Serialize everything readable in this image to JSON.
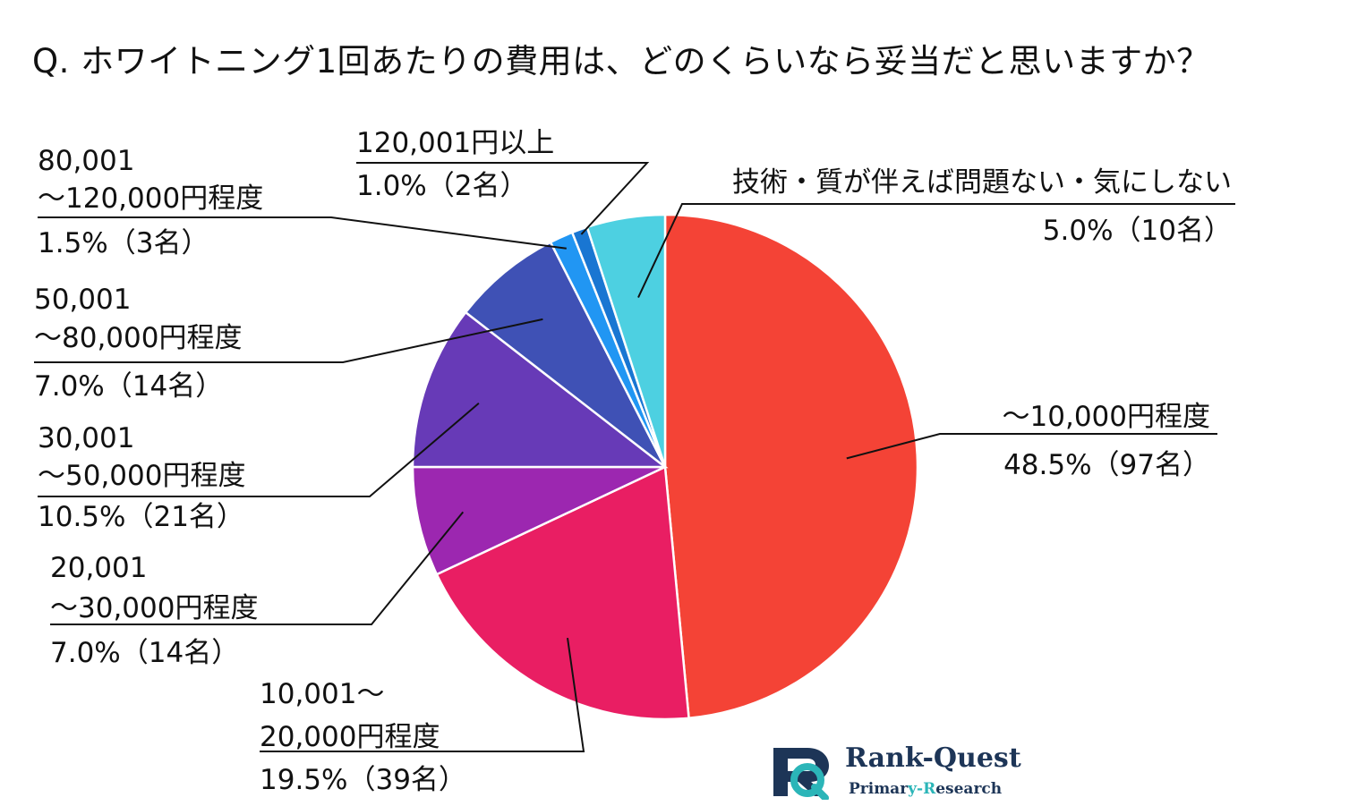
{
  "title": "Q. ホワイトニング1回あたりの費用は、どのくらいなら妥当だと思いますか？",
  "chart_data": {
    "type": "pie",
    "start": "12 o'clock",
    "direction": "clockwise",
    "slices": [
      {
        "label_lines": [
          "～10,000円程度"
        ],
        "value_text": "48.5%（97名）",
        "percent": 48.5,
        "count": 97,
        "color": "#f44336"
      },
      {
        "label_lines": [
          "10,001～",
          "20,000円程度"
        ],
        "value_text": "19.5%（39名）",
        "percent": 19.5,
        "count": 39,
        "color": "#e91e63"
      },
      {
        "label_lines": [
          "20,001",
          "～30,000円程度"
        ],
        "value_text": "7.0%（14名）",
        "percent": 7.0,
        "count": 14,
        "color": "#9c27b0"
      },
      {
        "label_lines": [
          "30,001",
          "～50,000円程度"
        ],
        "value_text": "10.5%（21名）",
        "percent": 10.5,
        "count": 21,
        "color": "#673ab7"
      },
      {
        "label_lines": [
          "50,001",
          "～80,000円程度"
        ],
        "value_text": "7.0%（14名）",
        "percent": 7.0,
        "count": 14,
        "color": "#3f51b5"
      },
      {
        "label_lines": [
          "80,001",
          "～120,000円程度"
        ],
        "value_text": "1.5%（3名）",
        "percent": 1.5,
        "count": 3,
        "color": "#2196f3"
      },
      {
        "label_lines": [
          "120,001円以上"
        ],
        "value_text": "1.0%（2名）",
        "percent": 1.0,
        "count": 2,
        "color": "#1976d2"
      },
      {
        "label_lines": [
          "技術・質が伴えば問題ない・気にしない"
        ],
        "value_text": "5.0%（10名）",
        "percent": 5.0,
        "count": 10,
        "color": "#4dd0e1"
      }
    ]
  },
  "logo": {
    "name": "Rank-Quest",
    "tagline_a": "Primar",
    "tagline_b": "y-R",
    "tagline_c": "esearch",
    "colors": {
      "navy": "#1d3557",
      "teal": "#2bb5b8"
    }
  }
}
